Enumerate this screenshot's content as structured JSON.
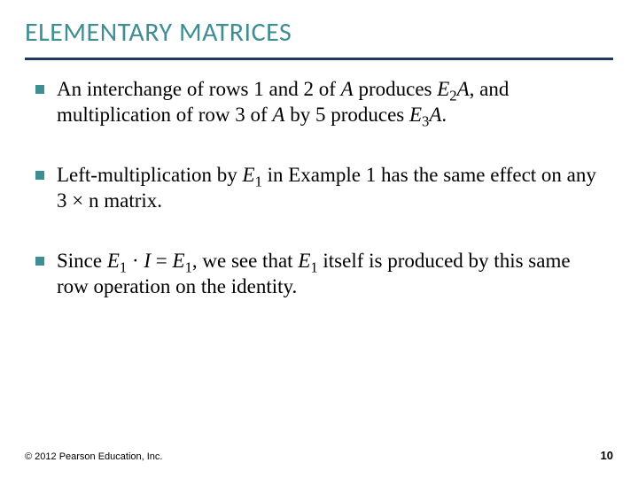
{
  "header": {
    "title": "ELEMENTARY MATRICES",
    "title_color": "#3f8e93",
    "title_fontsize": 30,
    "underline_color": "#1f3a5f"
  },
  "bullets": {
    "marker_color": "#3f8e93",
    "text_fontsize": 23,
    "items": [
      {
        "pre": "An interchange of rows 1 and 2 of ",
        "A1": "A",
        "mid1": " produces ",
        "E2A_E": "E",
        "E2A_sub": "2",
        "E2A_A": "A",
        "mid2": ", and multiplication of row 3 of ",
        "A2": "A",
        "mid3": " by 5 produces ",
        "E3A_E": "E",
        "E3A_sub": "3",
        "E3A_A": "A",
        "end": "."
      },
      {
        "pre": "Left-multiplication by ",
        "E1_E": "E",
        "E1_sub": "1",
        "mid1": " in Example 1 has the same effect on any ",
        "dim": "3 × n",
        "end": " matrix."
      },
      {
        "pre": "Since ",
        "eq_lhs_E": "E",
        "eq_lhs_sub": "1",
        "eq_dot": " · ",
        "eq_I": "I",
        "eq_eq": " = ",
        "eq_rhs_E": "E",
        "eq_rhs_sub": "1",
        "mid1": ", we see that ",
        "E1_E": "E",
        "E1_sub": "1",
        "end": " itself is produced by this same row operation on the identity."
      }
    ]
  },
  "footer": {
    "copyright": "© 2012 Pearson Education, Inc.",
    "copyright_fontsize": 11,
    "page": "10",
    "page_fontsize": 13
  }
}
